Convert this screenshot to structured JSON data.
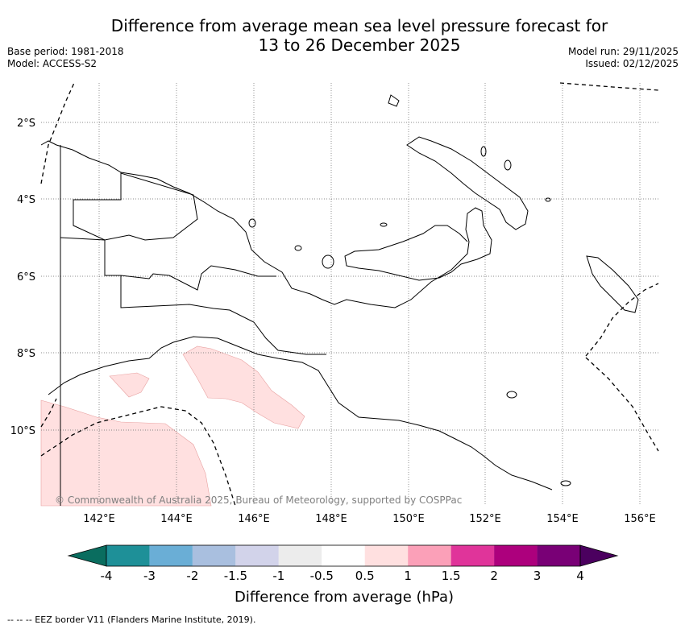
{
  "title": {
    "line1": "Difference from average mean sea level pressure forecast for",
    "line2": "13 to 26 December 2025"
  },
  "meta_left": {
    "base_period": "Base period: 1981-2018",
    "model": "Model: ACCESS-S2"
  },
  "meta_right": {
    "model_run": "Model run: 29/11/2025",
    "issued": "Issued: 02/12/2025"
  },
  "map": {
    "lat_labels": [
      "2°S",
      "4°S",
      "6°S",
      "8°S",
      "10°S"
    ],
    "lon_labels": [
      "142°E",
      "144°E",
      "146°E",
      "148°E",
      "150°E",
      "152°E",
      "154°E",
      "156°E"
    ],
    "copyright": "© Commonwealth of Australia 2025, Bureau of Meteorology, supported by COSPPac",
    "anomaly_fill_color": "#ffe0e0"
  },
  "colorbar": {
    "title": "Difference from average (hPa)",
    "colors": [
      "#0a6d5f",
      "#1e9098",
      "#6aaed6",
      "#a9bfdf",
      "#d2d3ea",
      "#ececec",
      "#ffffff",
      "#ffe0e0",
      "#fba0b8",
      "#e0349a",
      "#ad007d",
      "#790076",
      "#4b005f"
    ],
    "ticks": [
      "-4",
      "-3",
      "-2",
      "-1.5",
      "-1",
      "-0.5",
      "0.5",
      "1",
      "1.5",
      "2",
      "3",
      "4"
    ]
  },
  "footer": "--  --  -- EEZ border V11 (Flanders Marine Institute, 2019)."
}
